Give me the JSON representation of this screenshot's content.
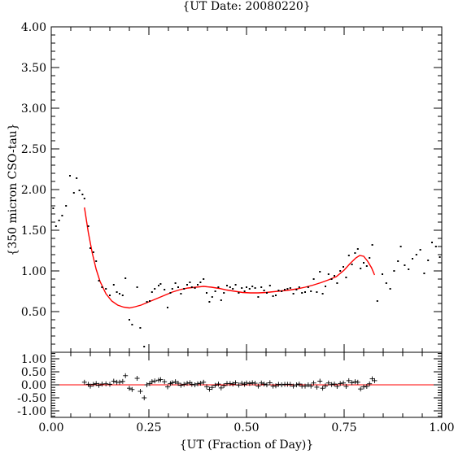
{
  "chart_data": [
    {
      "type": "scatter",
      "title": "{UT Date: 20080220}",
      "xlabel": "{UT (Fraction of Day)}",
      "ylabel": "{350 micron CSO-tau}",
      "xlim": [
        0,
        1
      ],
      "ylim": [
        0,
        4
      ],
      "x_ticks": [
        "0.00",
        "0.25",
        "0.50",
        "0.75",
        "1.00"
      ],
      "y_ticks": [
        "0.50",
        "1.00",
        "1.50",
        "2.00",
        "2.50",
        "3.00",
        "3.50",
        "4.00"
      ],
      "series": [
        {
          "marker": "dot",
          "color": "#000000",
          "points": [
            [
              0.005,
              1.77
            ],
            [
              0.012,
              1.55
            ],
            [
              0.02,
              1.62
            ],
            [
              0.028,
              1.68
            ],
            [
              0.038,
              1.8
            ],
            [
              0.048,
              2.17
            ],
            [
              0.058,
              1.96
            ],
            [
              0.065,
              2.14
            ],
            [
              0.072,
              1.99
            ],
            [
              0.08,
              1.94
            ],
            [
              0.085,
              1.89
            ],
            [
              0.095,
              1.55
            ],
            [
              0.1,
              1.28
            ],
            [
              0.108,
              1.23
            ],
            [
              0.115,
              1.12
            ],
            [
              0.122,
              0.88
            ],
            [
              0.13,
              0.8
            ],
            [
              0.14,
              0.78
            ],
            [
              0.15,
              0.7
            ],
            [
              0.16,
              0.83
            ],
            [
              0.168,
              0.74
            ],
            [
              0.175,
              0.72
            ],
            [
              0.183,
              0.7
            ],
            [
              0.19,
              0.91
            ],
            [
              0.2,
              0.4
            ],
            [
              0.207,
              0.34
            ],
            [
              0.22,
              0.8
            ],
            [
              0.228,
              0.3
            ],
            [
              0.238,
              0.07
            ],
            [
              0.245,
              0.62
            ],
            [
              0.252,
              0.63
            ],
            [
              0.258,
              0.74
            ],
            [
              0.265,
              0.78
            ],
            [
              0.275,
              0.82
            ],
            [
              0.28,
              0.84
            ],
            [
              0.29,
              0.77
            ],
            [
              0.298,
              0.55
            ],
            [
              0.305,
              0.73
            ],
            [
              0.31,
              0.78
            ],
            [
              0.318,
              0.85
            ],
            [
              0.325,
              0.8
            ],
            [
              0.332,
              0.72
            ],
            [
              0.34,
              0.78
            ],
            [
              0.348,
              0.83
            ],
            [
              0.355,
              0.86
            ],
            [
              0.36,
              0.8
            ],
            [
              0.368,
              0.79
            ],
            [
              0.375,
              0.83
            ],
            [
              0.382,
              0.86
            ],
            [
              0.39,
              0.9
            ],
            [
              0.398,
              0.73
            ],
            [
              0.405,
              0.62
            ],
            [
              0.412,
              0.68
            ],
            [
              0.42,
              0.75
            ],
            [
              0.428,
              0.8
            ],
            [
              0.435,
              0.64
            ],
            [
              0.442,
              0.73
            ],
            [
              0.45,
              0.82
            ],
            [
              0.458,
              0.8
            ],
            [
              0.465,
              0.78
            ],
            [
              0.472,
              0.83
            ],
            [
              0.48,
              0.73
            ],
            [
              0.488,
              0.79
            ],
            [
              0.495,
              0.75
            ],
            [
              0.5,
              0.8
            ],
            [
              0.508,
              0.78
            ],
            [
              0.515,
              0.81
            ],
            [
              0.522,
              0.79
            ],
            [
              0.53,
              0.68
            ],
            [
              0.538,
              0.8
            ],
            [
              0.545,
              0.76
            ],
            [
              0.552,
              0.73
            ],
            [
              0.56,
              0.82
            ],
            [
              0.568,
              0.69
            ],
            [
              0.575,
              0.7
            ],
            [
              0.582,
              0.76
            ],
            [
              0.59,
              0.75
            ],
            [
              0.598,
              0.77
            ],
            [
              0.605,
              0.78
            ],
            [
              0.612,
              0.79
            ],
            [
              0.62,
              0.72
            ],
            [
              0.628,
              0.77
            ],
            [
              0.635,
              0.8
            ],
            [
              0.642,
              0.73
            ],
            [
              0.65,
              0.74
            ],
            [
              0.658,
              0.8
            ],
            [
              0.665,
              0.75
            ],
            [
              0.672,
              0.9
            ],
            [
              0.68,
              0.74
            ],
            [
              0.688,
              0.99
            ],
            [
              0.695,
              0.72
            ],
            [
              0.702,
              0.81
            ],
            [
              0.71,
              0.96
            ],
            [
              0.718,
              0.9
            ],
            [
              0.725,
              0.94
            ],
            [
              0.732,
              0.85
            ],
            [
              0.74,
              1.0
            ],
            [
              0.748,
              1.05
            ],
            [
              0.755,
              0.92
            ],
            [
              0.762,
              1.19
            ],
            [
              0.77,
              1.08
            ],
            [
              0.778,
              1.22
            ],
            [
              0.785,
              1.27
            ],
            [
              0.792,
              1.03
            ],
            [
              0.8,
              1.1
            ],
            [
              0.808,
              1.06
            ],
            [
              0.815,
              1.16
            ],
            [
              0.822,
              1.32
            ],
            [
              0.835,
              0.63
            ],
            [
              0.848,
              0.96
            ],
            [
              0.858,
              0.85
            ],
            [
              0.868,
              0.78
            ],
            [
              0.878,
              1.0
            ],
            [
              0.888,
              1.12
            ],
            [
              0.895,
              1.3
            ],
            [
              0.905,
              1.07
            ],
            [
              0.915,
              1.02
            ],
            [
              0.925,
              1.15
            ],
            [
              0.935,
              1.2
            ],
            [
              0.945,
              1.26
            ],
            [
              0.955,
              0.97
            ],
            [
              0.965,
              1.13
            ],
            [
              0.975,
              1.35
            ],
            [
              0.985,
              1.3
            ],
            [
              0.995,
              1.17
            ]
          ]
        },
        {
          "type": "line",
          "color": "#ff0000",
          "points": [
            [
              0.085,
              1.78
            ],
            [
              0.095,
              1.47
            ],
            [
              0.105,
              1.22
            ],
            [
              0.115,
              1.02
            ],
            [
              0.125,
              0.87
            ],
            [
              0.14,
              0.72
            ],
            [
              0.155,
              0.63
            ],
            [
              0.17,
              0.58
            ],
            [
              0.185,
              0.555
            ],
            [
              0.2,
              0.545
            ],
            [
              0.215,
              0.56
            ],
            [
              0.23,
              0.58
            ],
            [
              0.25,
              0.62
            ],
            [
              0.27,
              0.66
            ],
            [
              0.29,
              0.7
            ],
            [
              0.31,
              0.74
            ],
            [
              0.33,
              0.77
            ],
            [
              0.35,
              0.79
            ],
            [
              0.37,
              0.8
            ],
            [
              0.39,
              0.81
            ],
            [
              0.41,
              0.8
            ],
            [
              0.43,
              0.785
            ],
            [
              0.45,
              0.765
            ],
            [
              0.47,
              0.75
            ],
            [
              0.49,
              0.735
            ],
            [
              0.51,
              0.73
            ],
            [
              0.53,
              0.73
            ],
            [
              0.55,
              0.735
            ],
            [
              0.57,
              0.745
            ],
            [
              0.59,
              0.755
            ],
            [
              0.61,
              0.765
            ],
            [
              0.63,
              0.78
            ],
            [
              0.65,
              0.8
            ],
            [
              0.67,
              0.825
            ],
            [
              0.69,
              0.855
            ],
            [
              0.71,
              0.89
            ],
            [
              0.73,
              0.93
            ],
            [
              0.75,
              1.01
            ],
            [
              0.765,
              1.09
            ],
            [
              0.78,
              1.16
            ],
            [
              0.79,
              1.19
            ],
            [
              0.8,
              1.18
            ],
            [
              0.81,
              1.12
            ],
            [
              0.82,
              1.04
            ],
            [
              0.828,
              0.95
            ]
          ]
        }
      ]
    },
    {
      "type": "scatter",
      "xlabel": "",
      "ylabel": "",
      "xlim": [
        0,
        1
      ],
      "ylim": [
        -1.25,
        1.25
      ],
      "y_ticks": [
        "1.00",
        "0.50",
        "0.00",
        "-0.50",
        "-1.00"
      ],
      "zero_line_color": "#ff0000",
      "series": [
        {
          "marker": "plus",
          "color": "#000000",
          "points": [
            [
              0.085,
              0.1
            ],
            [
              0.095,
              0.02
            ],
            [
              0.1,
              -0.05
            ],
            [
              0.108,
              0.02
            ],
            [
              0.115,
              0.05
            ],
            [
              0.122,
              -0.02
            ],
            [
              0.13,
              0.03
            ],
            [
              0.14,
              0.04
            ],
            [
              0.15,
              0.02
            ],
            [
              0.16,
              0.14
            ],
            [
              0.168,
              0.1
            ],
            [
              0.175,
              0.1
            ],
            [
              0.183,
              0.13
            ],
            [
              0.19,
              0.35
            ],
            [
              0.2,
              -0.13
            ],
            [
              0.207,
              -0.18
            ],
            [
              0.22,
              0.25
            ],
            [
              0.228,
              -0.25
            ],
            [
              0.238,
              -0.5
            ],
            [
              0.245,
              0.0
            ],
            [
              0.252,
              0.05
            ],
            [
              0.258,
              0.12
            ],
            [
              0.265,
              0.15
            ],
            [
              0.275,
              0.18
            ],
            [
              0.28,
              0.2
            ],
            [
              0.29,
              0.12
            ],
            [
              0.298,
              -0.08
            ],
            [
              0.305,
              0.05
            ],
            [
              0.31,
              0.08
            ],
            [
              0.318,
              0.12
            ],
            [
              0.325,
              0.06
            ],
            [
              0.332,
              -0.02
            ],
            [
              0.34,
              0.02
            ],
            [
              0.348,
              0.06
            ],
            [
              0.355,
              0.08
            ],
            [
              0.36,
              0.02
            ],
            [
              0.368,
              0.0
            ],
            [
              0.375,
              0.04
            ],
            [
              0.382,
              0.06
            ],
            [
              0.39,
              0.1
            ],
            [
              0.398,
              -0.07
            ],
            [
              0.405,
              -0.17
            ],
            [
              0.412,
              -0.1
            ],
            [
              0.42,
              -0.02
            ],
            [
              0.428,
              0.03
            ],
            [
              0.435,
              -0.12
            ],
            [
              0.442,
              -0.03
            ],
            [
              0.45,
              0.05
            ],
            [
              0.458,
              0.05
            ],
            [
              0.465,
              0.03
            ],
            [
              0.472,
              0.08
            ],
            [
              0.48,
              -0.01
            ],
            [
              0.488,
              0.06
            ],
            [
              0.495,
              0.02
            ],
            [
              0.5,
              0.07
            ],
            [
              0.508,
              0.05
            ],
            [
              0.515,
              0.08
            ],
            [
              0.522,
              0.06
            ],
            [
              0.53,
              -0.05
            ],
            [
              0.538,
              0.07
            ],
            [
              0.545,
              0.03
            ],
            [
              0.552,
              0.0
            ],
            [
              0.56,
              0.08
            ],
            [
              0.568,
              -0.05
            ],
            [
              0.575,
              -0.04
            ],
            [
              0.582,
              0.02
            ],
            [
              0.59,
              0.0
            ],
            [
              0.598,
              0.02
            ],
            [
              0.605,
              0.02
            ],
            [
              0.612,
              0.02
            ],
            [
              0.62,
              -0.05
            ],
            [
              0.628,
              0.0
            ],
            [
              0.635,
              0.03
            ],
            [
              0.642,
              -0.05
            ],
            [
              0.65,
              -0.05
            ],
            [
              0.658,
              0.0
            ],
            [
              0.665,
              -0.05
            ],
            [
              0.672,
              0.07
            ],
            [
              0.68,
              -0.09
            ],
            [
              0.688,
              0.14
            ],
            [
              0.695,
              -0.13
            ],
            [
              0.702,
              -0.04
            ],
            [
              0.71,
              0.07
            ],
            [
              0.718,
              0.01
            ],
            [
              0.725,
              0.03
            ],
            [
              0.732,
              -0.06
            ],
            [
              0.74,
              0.05
            ],
            [
              0.748,
              0.07
            ],
            [
              0.755,
              -0.06
            ],
            [
              0.762,
              0.16
            ],
            [
              0.77,
              0.08
            ],
            [
              0.778,
              0.12
            ],
            [
              0.785,
              0.1
            ],
            [
              0.792,
              -0.16
            ],
            [
              0.8,
              -0.08
            ],
            [
              0.808,
              -0.06
            ],
            [
              0.815,
              0.04
            ],
            [
              0.822,
              0.23
            ],
            [
              0.828,
              0.16
            ]
          ]
        }
      ]
    }
  ]
}
